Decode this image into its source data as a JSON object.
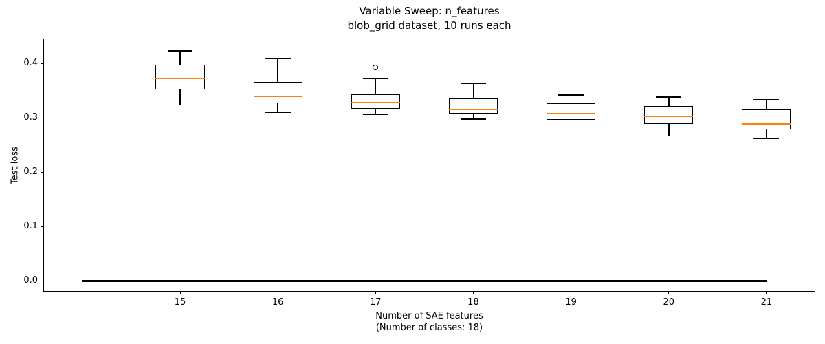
{
  "chart_data": {
    "type": "boxplot",
    "title": "Variable Sweep: n_features",
    "subtitle": "blob_grid dataset, 10 runs each",
    "ylabel": "Test loss",
    "xlabel_line1": "Number of SAE features",
    "xlabel_line2": "(Number of classes: 18)",
    "categories": [
      15,
      16,
      17,
      18,
      19,
      20,
      21
    ],
    "boxes": [
      {
        "x": 15,
        "whisker_low": 0.324,
        "q1": 0.352,
        "median": 0.372,
        "q3": 0.397,
        "whisker_high": 0.423,
        "outliers": []
      },
      {
        "x": 16,
        "whisker_low": 0.31,
        "q1": 0.327,
        "median": 0.34,
        "q3": 0.366,
        "whisker_high": 0.408,
        "outliers": []
      },
      {
        "x": 17,
        "whisker_low": 0.306,
        "q1": 0.317,
        "median": 0.328,
        "q3": 0.343,
        "whisker_high": 0.372,
        "outliers": [
          0.393
        ]
      },
      {
        "x": 18,
        "whisker_low": 0.298,
        "q1": 0.308,
        "median": 0.315,
        "q3": 0.336,
        "whisker_high": 0.363,
        "outliers": []
      },
      {
        "x": 19,
        "whisker_low": 0.283,
        "q1": 0.297,
        "median": 0.308,
        "q3": 0.327,
        "whisker_high": 0.342,
        "outliers": []
      },
      {
        "x": 20,
        "whisker_low": 0.267,
        "q1": 0.289,
        "median": 0.303,
        "q3": 0.322,
        "whisker_high": 0.338,
        "outliers": []
      },
      {
        "x": 21,
        "whisker_low": 0.262,
        "q1": 0.279,
        "median": 0.289,
        "q3": 0.315,
        "whisker_high": 0.333,
        "outliers": []
      }
    ],
    "reference_line": {
      "y": 0.0,
      "x_start": 14,
      "x_end": 21
    },
    "xticks": [
      15,
      16,
      17,
      18,
      19,
      20,
      21
    ],
    "xticklabels": [
      "15",
      "16",
      "17",
      "18",
      "19",
      "20",
      "21"
    ],
    "yticks": [
      0.0,
      0.1,
      0.2,
      0.3,
      0.4
    ],
    "yticklabels": [
      "0.0",
      "0.1",
      "0.2",
      "0.3",
      "0.4"
    ],
    "xlim": [
      13.6,
      21.5
    ],
    "ylim": [
      -0.019,
      0.4455
    ],
    "grid": false,
    "legend": null,
    "box_width": 0.5,
    "cap_width": 0.26,
    "colors": {
      "median": "#ff7f0e",
      "box_edge": "#000000",
      "reference_line": "#000000",
      "background": "#ffffff"
    }
  }
}
